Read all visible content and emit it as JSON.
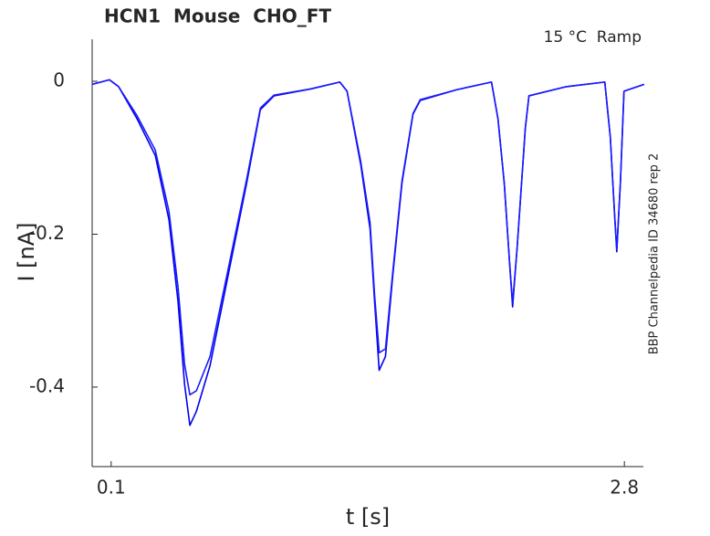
{
  "chart_data": {
    "type": "line",
    "title": "HCN1  Mouse  CHO_FT",
    "annotation": "15 °C  Ramp",
    "side_note": "BBP Channelpedia ID 34680 rep 2",
    "xlabel": "t [s]",
    "ylabel": "I [nA]",
    "x": [
      0.0,
      0.091,
      0.139,
      0.236,
      0.332,
      0.404,
      0.452,
      0.486,
      0.514,
      0.548,
      0.62,
      0.716,
      0.813,
      0.885,
      0.957,
      1.149,
      1.303,
      1.341,
      1.413,
      1.462,
      1.486,
      1.51,
      1.543,
      1.582,
      1.63,
      1.688,
      1.726,
      1.918,
      2.101,
      2.135,
      2.168,
      2.197,
      2.212,
      2.236,
      2.279,
      2.298,
      2.495,
      2.697,
      2.726,
      2.75,
      2.76,
      2.779,
      2.798,
      2.904
    ],
    "series": [
      {
        "color": "#0000ee",
        "values": [
          -0.004,
          0.002,
          -0.007,
          -0.049,
          -0.097,
          -0.181,
          -0.289,
          -0.396,
          -0.45,
          -0.432,
          -0.372,
          -0.253,
          -0.133,
          -0.037,
          -0.019,
          -0.01,
          -0.001,
          -0.013,
          -0.109,
          -0.193,
          -0.289,
          -0.378,
          -0.36,
          -0.253,
          -0.133,
          -0.043,
          -0.025,
          -0.011,
          -0.001,
          -0.049,
          -0.133,
          -0.241,
          -0.295,
          -0.217,
          -0.061,
          -0.019,
          -0.007,
          -0.001,
          -0.073,
          -0.181,
          -0.223,
          -0.133,
          -0.013,
          -0.004
        ]
      },
      {
        "color": "#1a1aff",
        "values": [
          -0.004,
          0.002,
          -0.007,
          -0.045,
          -0.09,
          -0.17,
          -0.27,
          -0.37,
          -0.41,
          -0.405,
          -0.36,
          -0.245,
          -0.128,
          -0.035,
          -0.018,
          -0.01,
          -0.001,
          -0.013,
          -0.105,
          -0.185,
          -0.28,
          -0.355,
          -0.35,
          -0.248,
          -0.13,
          -0.042,
          -0.024,
          -0.011,
          -0.001,
          -0.049,
          -0.133,
          -0.241,
          -0.29,
          -0.217,
          -0.061,
          -0.019,
          -0.007,
          -0.001,
          -0.073,
          -0.181,
          -0.22,
          -0.133,
          -0.013,
          -0.004
        ]
      }
    ],
    "xlim": [
      0,
      2.9
    ],
    "ylim": [
      -0.504,
      0.055
    ],
    "xticks": [
      0.1,
      2.8
    ],
    "yticks": [
      0,
      -0.2,
      -0.4
    ]
  }
}
